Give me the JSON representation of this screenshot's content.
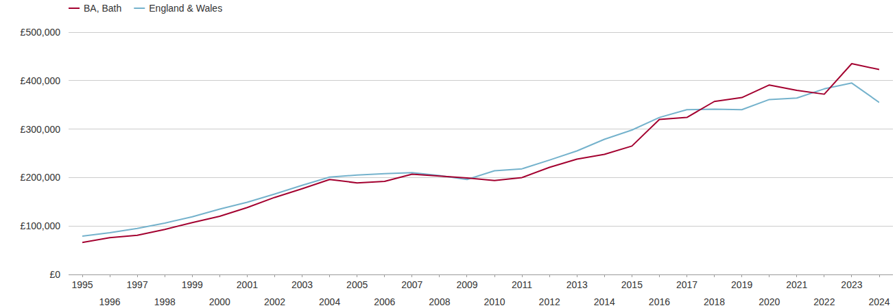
{
  "chart_data": {
    "type": "line",
    "x": [
      1995,
      1996,
      1997,
      1998,
      1999,
      2000,
      2001,
      2002,
      2003,
      2004,
      2005,
      2006,
      2007,
      2008,
      2009,
      2010,
      2011,
      2012,
      2013,
      2014,
      2015,
      2016,
      2017,
      2018,
      2019,
      2020,
      2021,
      2022,
      2023,
      2024
    ],
    "series": [
      {
        "name": "BA, Bath",
        "color": "#a3002f",
        "values": [
          66000,
          76000,
          81000,
          93000,
          107000,
          120000,
          138000,
          159000,
          177000,
          196000,
          189000,
          192000,
          207000,
          203000,
          199000,
          194000,
          200000,
          221000,
          238000,
          248000,
          265000,
          320000,
          324000,
          357000,
          365000,
          391000,
          380000,
          372000,
          435000,
          423000
        ]
      },
      {
        "name": "England & Wales",
        "color": "#74b2cc",
        "values": [
          79000,
          86000,
          95000,
          106000,
          119000,
          135000,
          149000,
          166000,
          184000,
          201000,
          205000,
          208000,
          210000,
          204000,
          196000,
          214000,
          218000,
          236000,
          255000,
          279000,
          298000,
          324000,
          340000,
          341000,
          340000,
          361000,
          364000,
          383000,
          395000,
          355000
        ]
      }
    ],
    "xlim": [
      1995,
      2024
    ],
    "xticks": [
      1995,
      1996,
      1997,
      1998,
      1999,
      2000,
      2001,
      2002,
      2003,
      2004,
      2005,
      2006,
      2007,
      2008,
      2009,
      2010,
      2011,
      2012,
      2013,
      2014,
      2015,
      2016,
      2017,
      2018,
      2019,
      2020,
      2021,
      2022,
      2023,
      2024
    ],
    "ylim": [
      0,
      500000
    ],
    "yticks": [
      {
        "value": 0,
        "label": "£0"
      },
      {
        "value": 100000,
        "label": "£100,000"
      },
      {
        "value": 200000,
        "label": "£200,000"
      },
      {
        "value": 300000,
        "label": "£300,000"
      },
      {
        "value": 400000,
        "label": "£400,000"
      },
      {
        "value": 500000,
        "label": "£500,000"
      }
    ],
    "grid": true,
    "legend": "top-left"
  }
}
